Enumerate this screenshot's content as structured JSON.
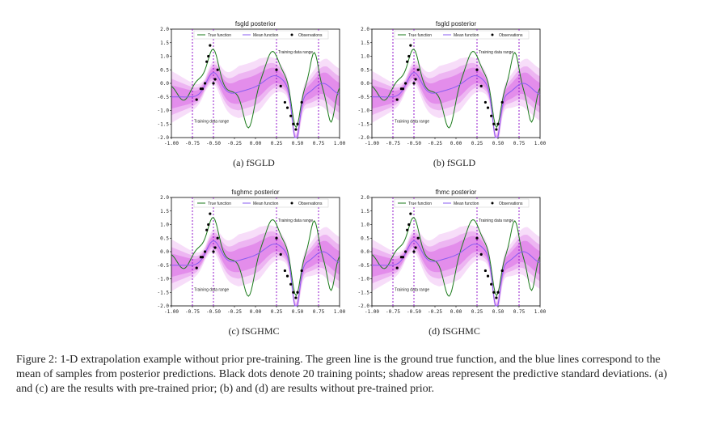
{
  "figure": {
    "caption": "Figure 2: 1-D extrapolation example without prior pre-training. The green line is the ground true function, and the blue lines correspond to the mean of samples from posterior predictions. Black dots denote 20 training points; shadow areas represent the predictive standard deviations. (a) and (c) are the results with pre-trained prior; (b) and (d) are results without pre-trained prior."
  },
  "colors": {
    "true_function": "#1a7a1a",
    "mean_function": "#8a5cf0",
    "observations": "#000000",
    "band": "#d040e0",
    "training_range_line": "#8b00c8"
  },
  "panels": [
    {
      "id": "a",
      "subcaption": "(a) fSGLD",
      "legend": [
        "True function",
        "Mean function",
        "Observations"
      ],
      "annotation_right": "Training data range",
      "annotation_left": "Training data range",
      "chart_data": {
        "type": "line",
        "title": "fsgld posterior",
        "xticks": [
          "-1.00",
          "-0.75",
          "-0.50",
          "-0.25",
          "0.00",
          "0.25",
          "0.50",
          "0.75",
          "1.00"
        ],
        "yticks": [
          "2.0",
          "1.5",
          "1.0",
          "0.5",
          "0.0",
          "-0.5",
          "-1.0",
          "-1.5",
          "-2.0"
        ],
        "xlim": [
          -1,
          1
        ],
        "ylim": [
          -2,
          2
        ],
        "training_range_lines": [
          -0.75,
          -0.5,
          0.25,
          0.75
        ],
        "observations_x": [
          -0.7,
          -0.65,
          -0.63,
          -0.6,
          -0.58,
          -0.56,
          -0.54,
          -0.52,
          -0.5,
          -0.48,
          -0.45,
          0.25,
          0.3,
          0.35,
          0.38,
          0.42,
          0.45,
          0.48,
          0.5,
          0.55
        ],
        "observations_y": [
          -0.6,
          -0.2,
          -0.2,
          0.0,
          0.8,
          1.0,
          1.4,
          1.7,
          0.0,
          0.15,
          0.5,
          0.5,
          -0.1,
          -0.7,
          -0.9,
          -1.2,
          -1.5,
          -1.7,
          -1.5,
          -0.7
        ]
      }
    },
    {
      "id": "b",
      "subcaption": "(b) fSGLD",
      "legend": [
        "True function",
        "Mean function",
        "Observations"
      ],
      "annotation_right": "Training data range",
      "annotation_left": "Training data range",
      "chart_data": {
        "type": "line",
        "title": "fsgld posterior",
        "xticks": [
          "-1.00",
          "-0.75",
          "-0.50",
          "-0.25",
          "0.00",
          "0.25",
          "0.50",
          "0.75",
          "1.00"
        ],
        "yticks": [
          "2.0",
          "1.5",
          "1.0",
          "0.5",
          "0.0",
          "-0.5",
          "-1.0",
          "-1.5",
          "-2.0"
        ],
        "xlim": [
          -1,
          1
        ],
        "ylim": [
          -2,
          2
        ],
        "training_range_lines": [
          -0.75,
          -0.5,
          0.25,
          0.75
        ],
        "observations_x": [
          -0.7,
          -0.65,
          -0.63,
          -0.6,
          -0.58,
          -0.56,
          -0.54,
          -0.52,
          -0.5,
          -0.48,
          -0.45,
          0.25,
          0.3,
          0.35,
          0.38,
          0.42,
          0.45,
          0.48,
          0.5,
          0.55
        ],
        "observations_y": [
          -0.6,
          -0.2,
          -0.2,
          0.0,
          0.8,
          1.0,
          1.4,
          1.7,
          0.0,
          0.15,
          0.5,
          0.5,
          -0.1,
          -0.7,
          -0.9,
          -1.2,
          -1.5,
          -1.7,
          -1.5,
          -0.7
        ]
      }
    },
    {
      "id": "c",
      "subcaption": "(c) fSGHMC",
      "legend": [
        "True function",
        "Mean function",
        "Observations"
      ],
      "annotation_right": "Training data range",
      "annotation_left": "Training data range",
      "chart_data": {
        "type": "line",
        "title": "fsghmc posterior",
        "xticks": [
          "-1.00",
          "-0.75",
          "-0.50",
          "-0.25",
          "0.00",
          "0.25",
          "0.50",
          "0.75",
          "1.00"
        ],
        "yticks": [
          "2.0",
          "1.5",
          "1.0",
          "0.5",
          "0.0",
          "-0.5",
          "-1.0",
          "-1.5",
          "-2.0"
        ],
        "xlim": [
          -1,
          1
        ],
        "ylim": [
          -2,
          2
        ],
        "training_range_lines": [
          -0.75,
          -0.5,
          0.25,
          0.75
        ],
        "observations_x": [
          -0.7,
          -0.65,
          -0.63,
          -0.6,
          -0.58,
          -0.56,
          -0.54,
          -0.52,
          -0.5,
          -0.48,
          -0.45,
          0.25,
          0.3,
          0.35,
          0.38,
          0.42,
          0.45,
          0.48,
          0.5,
          0.55
        ],
        "observations_y": [
          -0.6,
          -0.2,
          -0.2,
          0.0,
          0.8,
          1.0,
          1.4,
          1.7,
          0.0,
          0.15,
          0.5,
          0.5,
          -0.1,
          -0.7,
          -0.9,
          -1.2,
          -1.5,
          -1.7,
          -1.5,
          -0.7
        ]
      }
    },
    {
      "id": "d",
      "subcaption": "(d) fSGHMC",
      "legend": [
        "True function",
        "Mean function",
        "Observations"
      ],
      "annotation_right": "Training data range",
      "annotation_left": "Training data range",
      "chart_data": {
        "type": "line",
        "title": "fhmc posterior",
        "xticks": [
          "-1.00",
          "-0.75",
          "-0.50",
          "-0.25",
          "0.00",
          "0.25",
          "0.50",
          "0.75",
          "1.00"
        ],
        "yticks": [
          "2.0",
          "1.5",
          "1.0",
          "0.5",
          "0.0",
          "-0.5",
          "-1.0",
          "-1.5",
          "-2.0"
        ],
        "xlim": [
          -1,
          1
        ],
        "ylim": [
          -2,
          2
        ],
        "training_range_lines": [
          -0.75,
          -0.5,
          0.25,
          0.75
        ],
        "observations_x": [
          -0.7,
          -0.65,
          -0.63,
          -0.6,
          -0.58,
          -0.56,
          -0.54,
          -0.52,
          -0.5,
          -0.48,
          -0.45,
          0.25,
          0.3,
          0.35,
          0.38,
          0.42,
          0.45,
          0.48,
          0.5,
          0.55
        ],
        "observations_y": [
          -0.6,
          -0.2,
          -0.2,
          0.0,
          0.8,
          1.0,
          1.4,
          1.7,
          0.0,
          0.15,
          0.5,
          0.5,
          -0.1,
          -0.7,
          -0.9,
          -1.2,
          -1.5,
          -1.7,
          -1.5,
          -0.7
        ]
      }
    }
  ]
}
